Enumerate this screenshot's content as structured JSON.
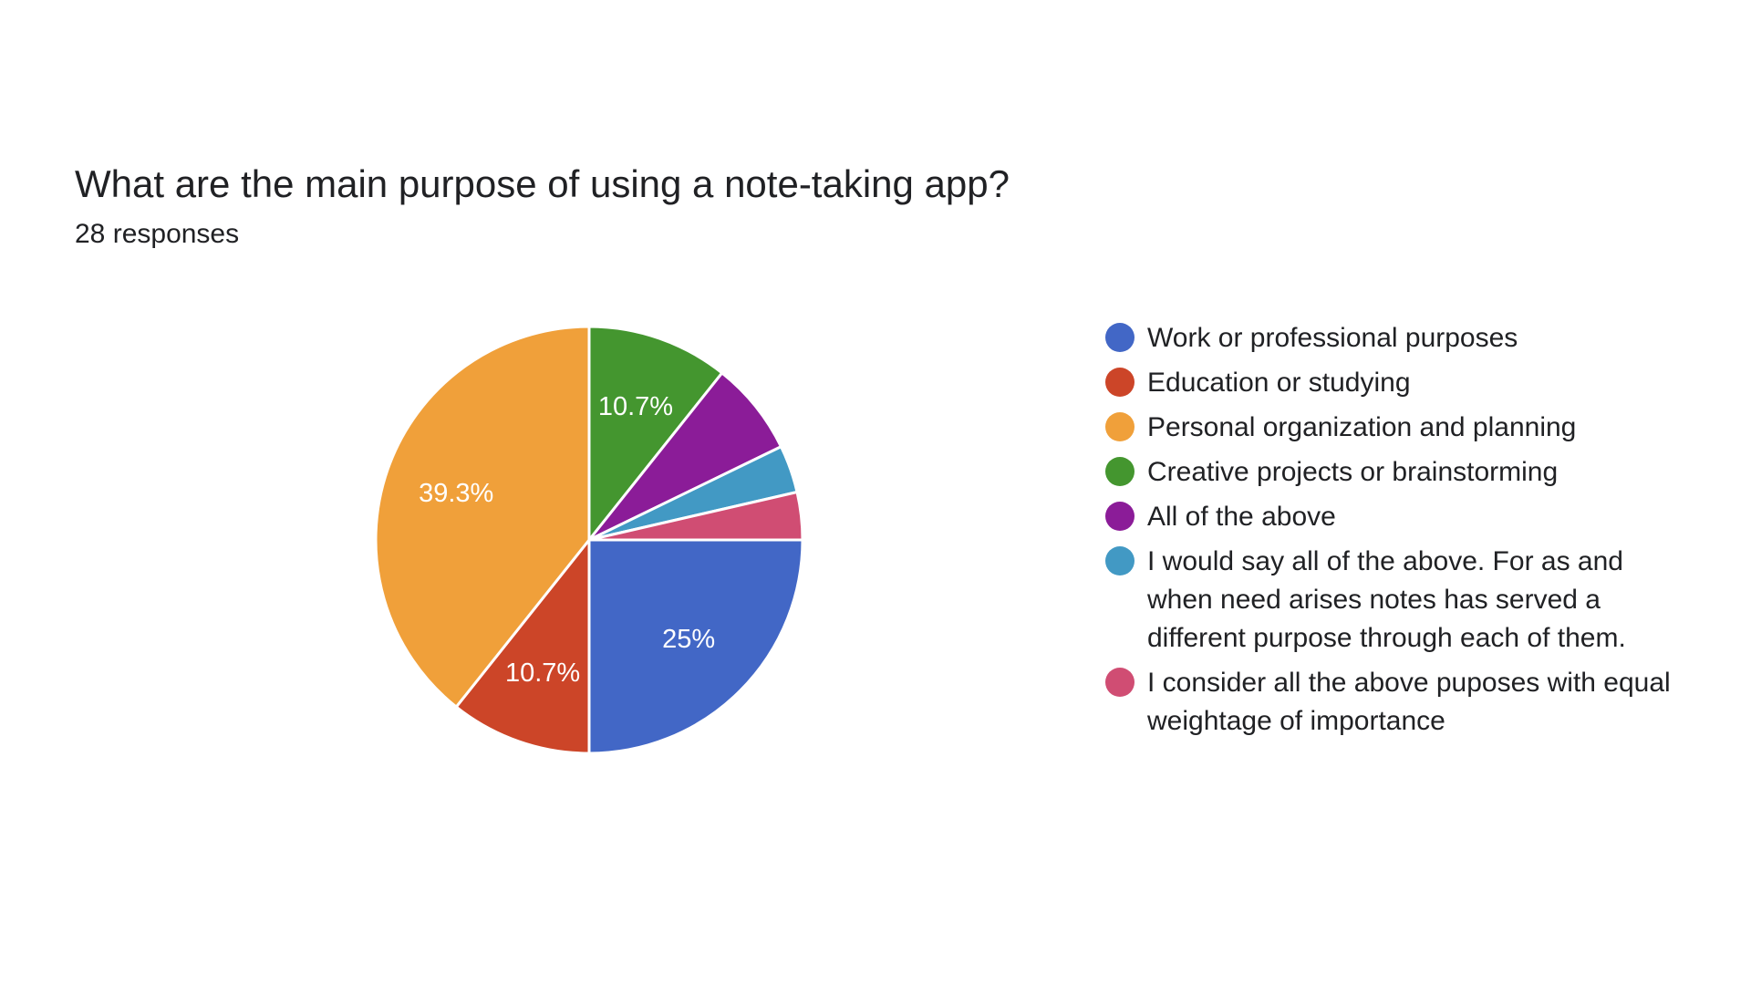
{
  "chart_data": {
    "type": "pie",
    "title": "What are the main purpose of using a note-taking app?",
    "subtitle": "28 responses",
    "legend_position": "right",
    "slices": [
      {
        "label": "Work or professional purposes",
        "value": 25.0,
        "display": "25%",
        "color": "#4267c6"
      },
      {
        "label": "Education or studying",
        "value": 10.7,
        "display": "10.7%",
        "color": "#cc4528"
      },
      {
        "label": "Personal organization and planning",
        "value": 39.3,
        "display": "39.3%",
        "color": "#f0a03a"
      },
      {
        "label": "Creative projects or brainstorming",
        "value": 10.7,
        "display": "10.7%",
        "color": "#44962f"
      },
      {
        "label": "All of the above",
        "value": 7.1,
        "display": "",
        "color": "#8b1c98"
      },
      {
        "label": "I would say all of the above. For as and when need arises notes has served a different purpose through each of them.",
        "value": 3.6,
        "display": "",
        "color": "#4299c4"
      },
      {
        "label": "I consider all the above puposes with equal weightage of importance",
        "value": 3.6,
        "display": "",
        "color": "#d04d73"
      }
    ]
  }
}
